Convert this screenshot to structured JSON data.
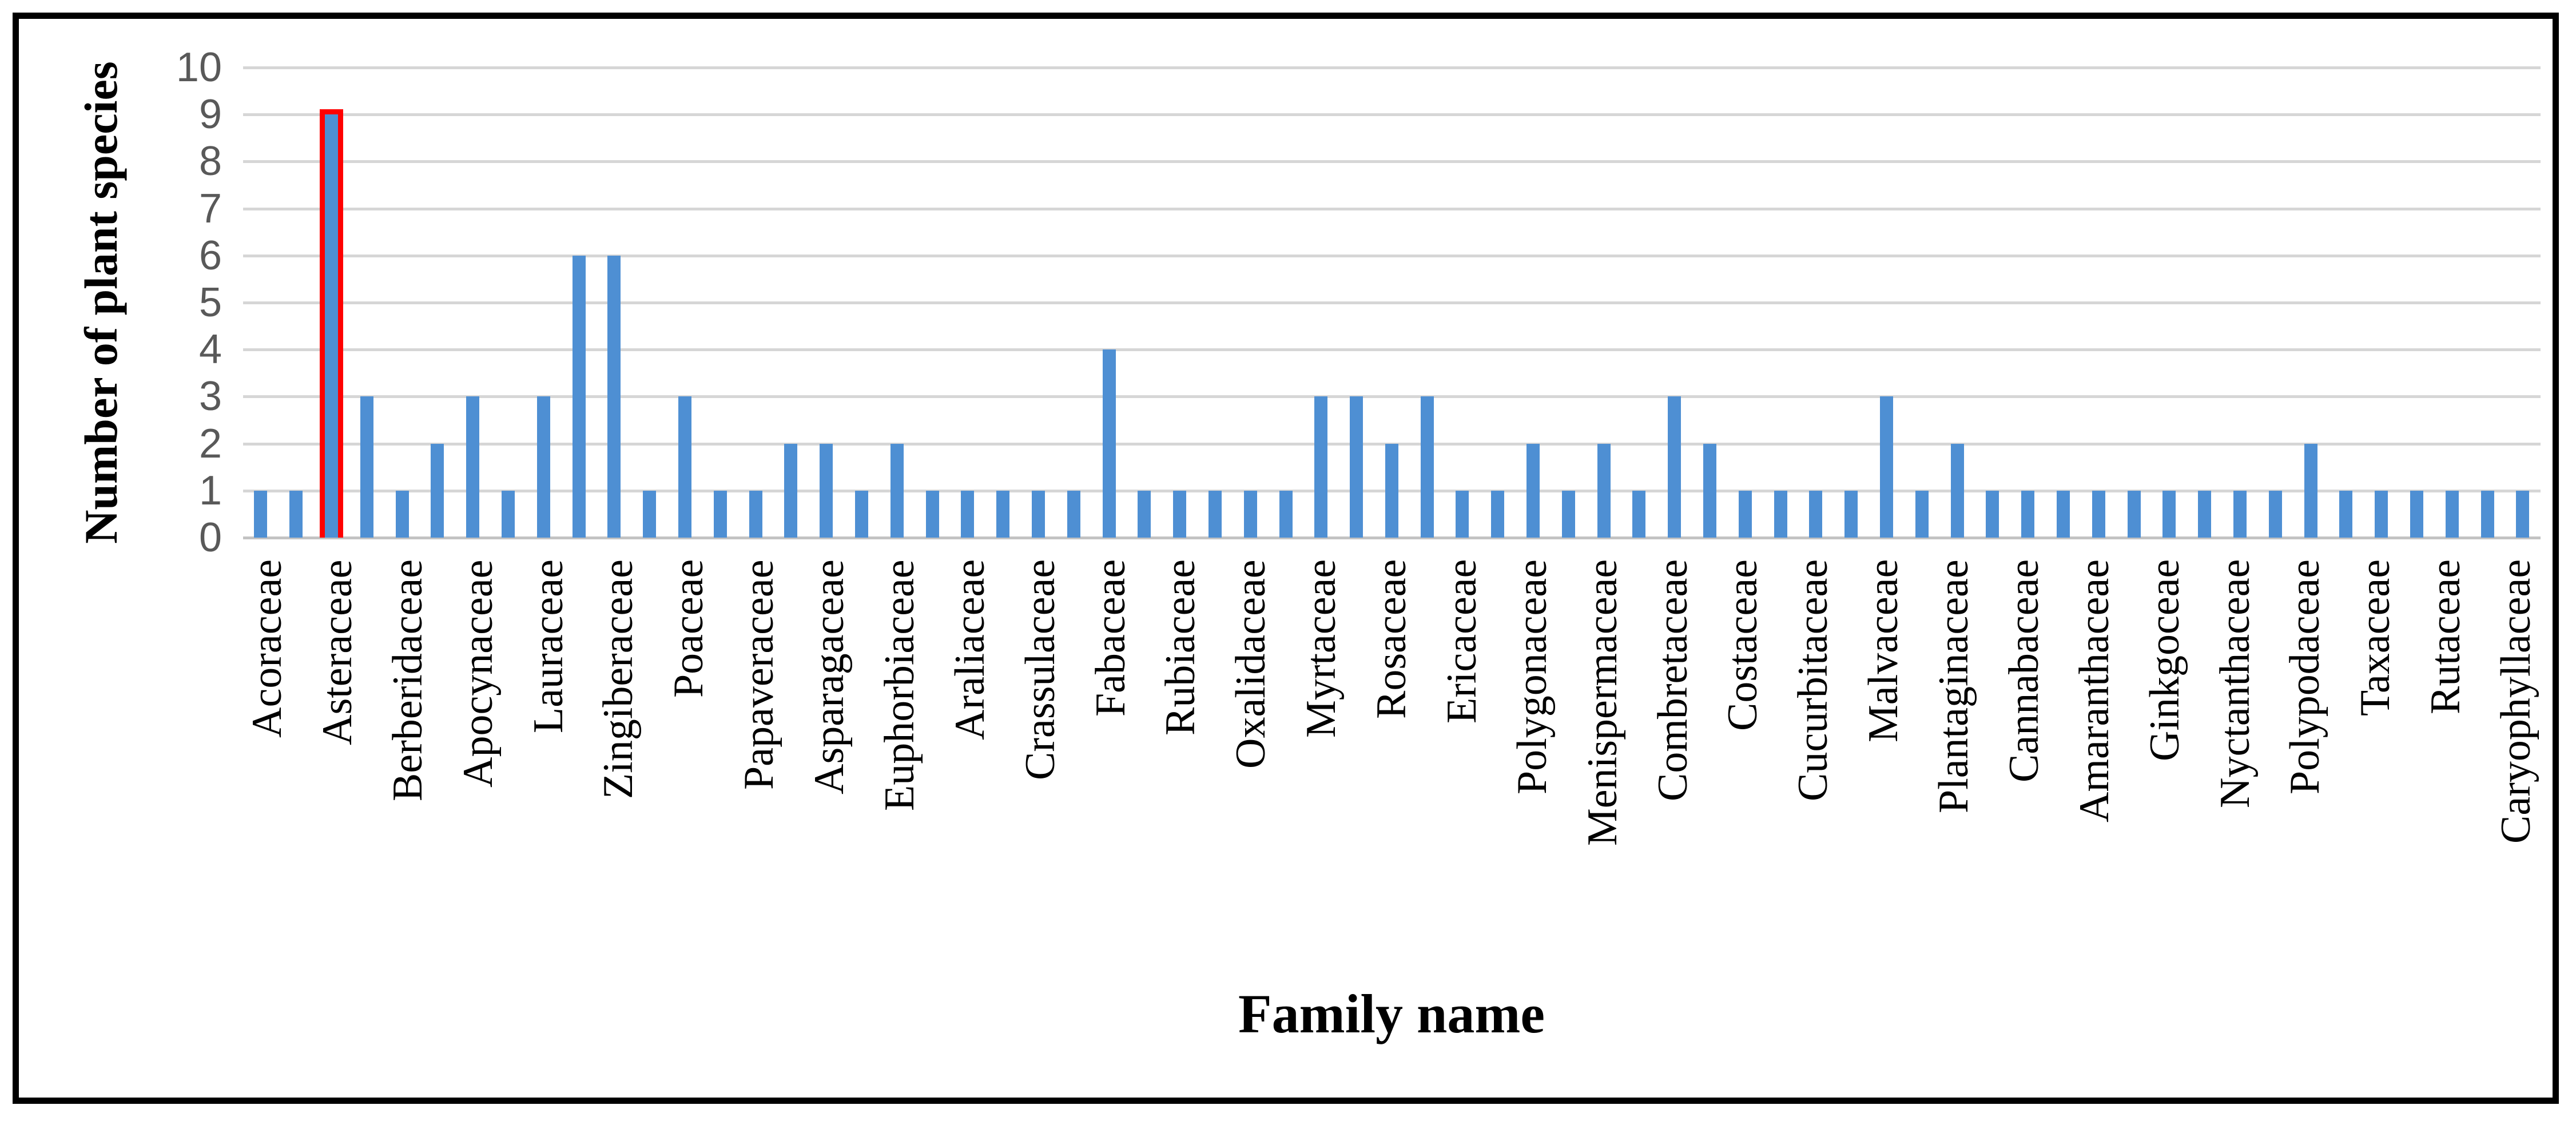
{
  "chart_data": {
    "type": "bar",
    "title": "",
    "xlabel": "Family name",
    "ylabel": "Number of plant species",
    "ylim": [
      0,
      10
    ],
    "yticks": [
      0,
      1,
      2,
      3,
      4,
      5,
      6,
      7,
      8,
      9,
      10
    ],
    "grid": true,
    "legend": false,
    "label_interval": 2,
    "colors": {
      "bar": "#4e8fd3",
      "highlight_outline": "#ff0000",
      "gridline": "#d6d6d6",
      "axis_line": "#c3c3c3",
      "tick_text": "#595959",
      "label_text": "#000000",
      "frame": "#000000"
    },
    "points": [
      {
        "label": "Acoraceae",
        "value": 1
      },
      {
        "label": "",
        "value": 1
      },
      {
        "label": "Asteraceae",
        "value": 9,
        "highlight": true
      },
      {
        "label": "",
        "value": 3
      },
      {
        "label": "Berberidaceae",
        "value": 1
      },
      {
        "label": "",
        "value": 2
      },
      {
        "label": "Apocynaceae",
        "value": 3
      },
      {
        "label": "",
        "value": 1
      },
      {
        "label": "Lauraceae",
        "value": 3
      },
      {
        "label": "",
        "value": 6
      },
      {
        "label": "Zingiberaceae",
        "value": 6
      },
      {
        "label": "",
        "value": 1
      },
      {
        "label": "Poaceae",
        "value": 3
      },
      {
        "label": "",
        "value": 1
      },
      {
        "label": "Papaveraceae",
        "value": 1
      },
      {
        "label": "",
        "value": 2
      },
      {
        "label": "Asparagaceae",
        "value": 2
      },
      {
        "label": "",
        "value": 1
      },
      {
        "label": "Euphorbiaceae",
        "value": 2
      },
      {
        "label": "",
        "value": 1
      },
      {
        "label": "Araliaceae",
        "value": 1
      },
      {
        "label": "",
        "value": 1
      },
      {
        "label": "Crassulaceae",
        "value": 1
      },
      {
        "label": "",
        "value": 1
      },
      {
        "label": "Fabaceae",
        "value": 4
      },
      {
        "label": "",
        "value": 1
      },
      {
        "label": "Rubiaceae",
        "value": 1
      },
      {
        "label": "",
        "value": 1
      },
      {
        "label": "Oxalidaceae",
        "value": 1
      },
      {
        "label": "",
        "value": 1
      },
      {
        "label": "Myrtaceae",
        "value": 3
      },
      {
        "label": "",
        "value": 3
      },
      {
        "label": "Rosaceae",
        "value": 2
      },
      {
        "label": "",
        "value": 3
      },
      {
        "label": "Ericaceae",
        "value": 1
      },
      {
        "label": "",
        "value": 1
      },
      {
        "label": "Polygonaceae",
        "value": 2
      },
      {
        "label": "",
        "value": 1
      },
      {
        "label": "Menispermaceae",
        "value": 2
      },
      {
        "label": "",
        "value": 1
      },
      {
        "label": "Combretaceae",
        "value": 3
      },
      {
        "label": "",
        "value": 2
      },
      {
        "label": "Costaceae",
        "value": 1
      },
      {
        "label": "",
        "value": 1
      },
      {
        "label": "Cucurbitaceae",
        "value": 1
      },
      {
        "label": "",
        "value": 1
      },
      {
        "label": "Malvaceae",
        "value": 3
      },
      {
        "label": "",
        "value": 1
      },
      {
        "label": "Plantaginaceae",
        "value": 2
      },
      {
        "label": "",
        "value": 1
      },
      {
        "label": "Cannabaceae",
        "value": 1
      },
      {
        "label": "",
        "value": 1
      },
      {
        "label": "Amaranthaceae",
        "value": 1
      },
      {
        "label": "",
        "value": 1
      },
      {
        "label": "Ginkgoceae",
        "value": 1
      },
      {
        "label": "",
        "value": 1
      },
      {
        "label": "Nyctanthaceae",
        "value": 1
      },
      {
        "label": "",
        "value": 1
      },
      {
        "label": "Polypodaceae",
        "value": 2
      },
      {
        "label": "",
        "value": 1
      },
      {
        "label": "Taxaceae",
        "value": 1
      },
      {
        "label": "",
        "value": 1
      },
      {
        "label": "Rutaceae",
        "value": 1
      },
      {
        "label": "",
        "value": 1
      },
      {
        "label": "Caryophyllaceae",
        "value": 1
      }
    ]
  }
}
